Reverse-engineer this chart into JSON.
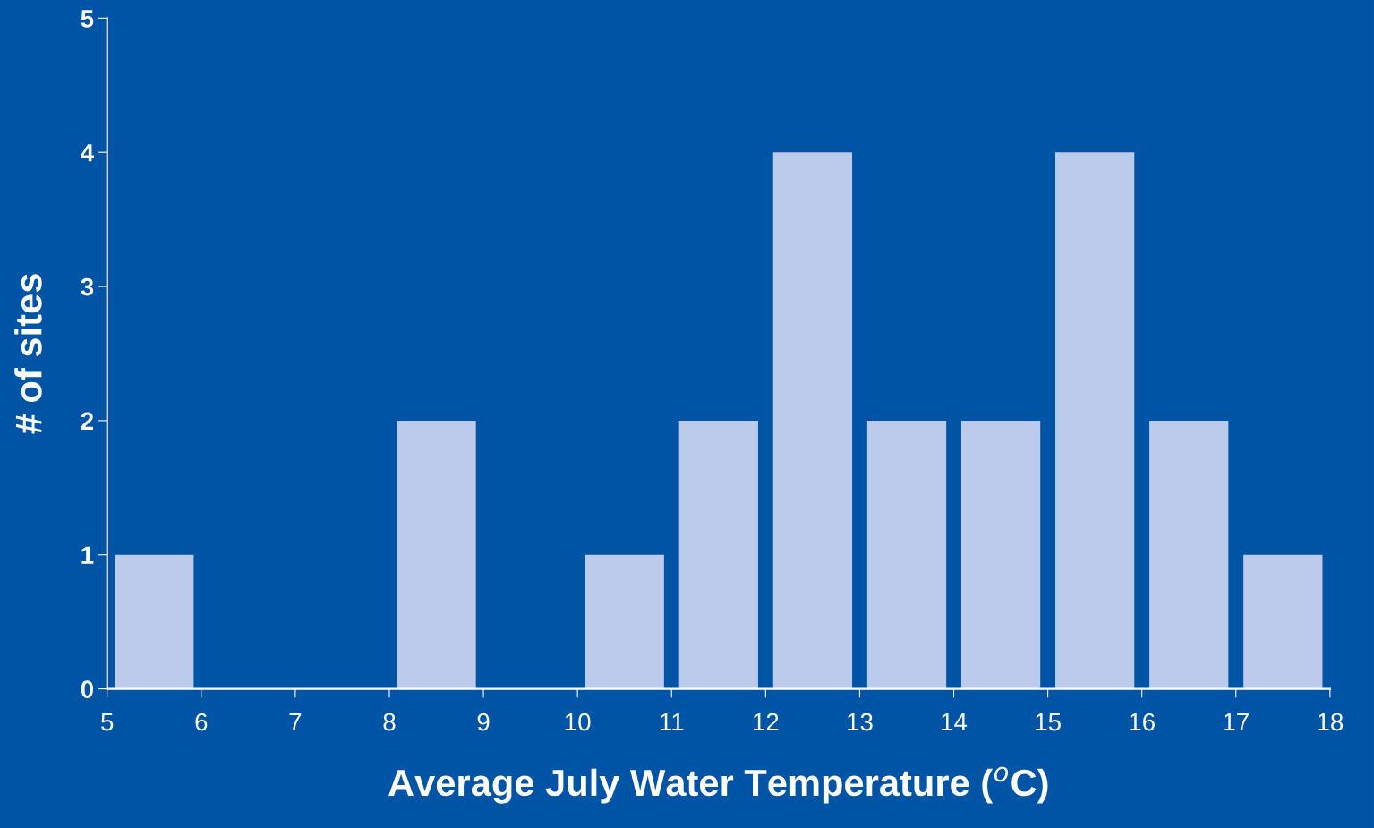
{
  "chart_data": {
    "type": "histogram",
    "xlabel": "Average July Water Temperature ($^{o}$C)",
    "ylabel": "# of sites",
    "bins": [
      5,
      6,
      7,
      8,
      9,
      10,
      11,
      12,
      13,
      14,
      15,
      16,
      17,
      18
    ],
    "values": [
      1,
      0,
      0,
      2,
      0,
      1,
      2,
      4,
      2,
      2,
      4,
      2,
      1
    ],
    "color": "#bccbeb",
    "xlim": [
      5,
      18
    ],
    "xticks": [
      5,
      6,
      7,
      8,
      9,
      10,
      11,
      12,
      13,
      14,
      15,
      16,
      17,
      18
    ],
    "ylim": [
      0,
      5
    ],
    "yticks": [
      0,
      1,
      2,
      3,
      4,
      5
    ],
    "grid": false,
    "legend": false
  }
}
